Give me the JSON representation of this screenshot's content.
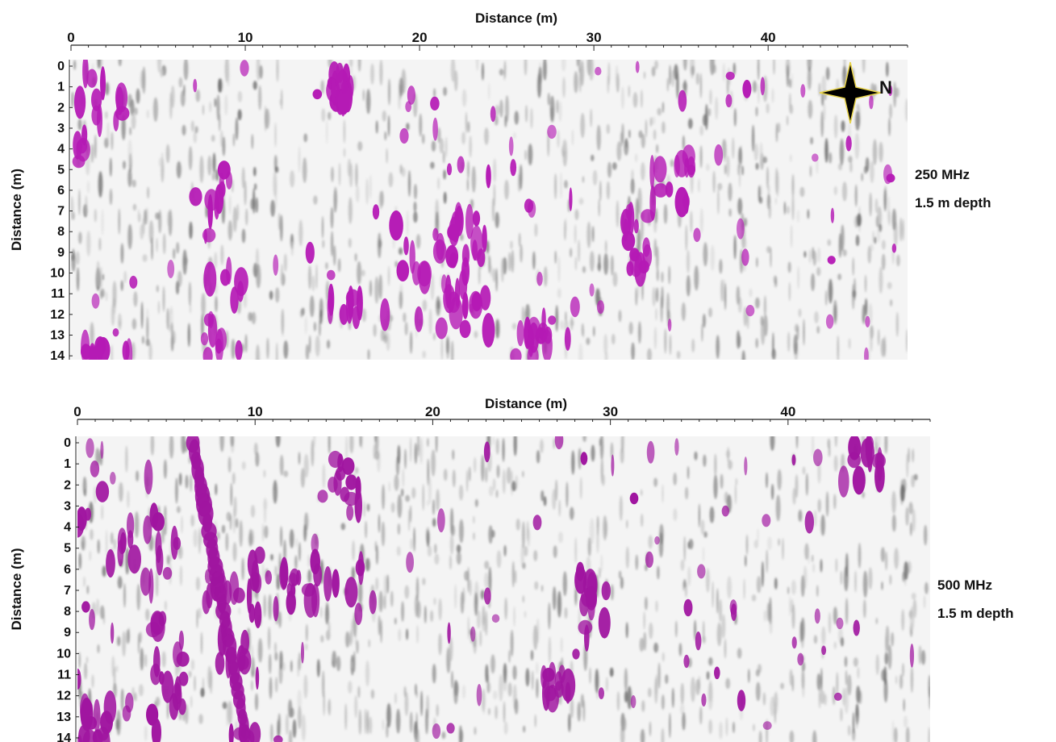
{
  "chart_data": [
    {
      "type": "heatmap",
      "xlabel": "Distance (m)",
      "ylabel": "Distance (m)",
      "x_ticks": [
        "0",
        "10",
        "20",
        "30",
        "40"
      ],
      "y_ticks": [
        "0",
        "1",
        "2",
        "3",
        "4",
        "5",
        "6",
        "7",
        "8",
        "9",
        "10",
        "11",
        "12",
        "13",
        "14"
      ],
      "xlim": [
        0,
        48
      ],
      "ylim": [
        0,
        14
      ],
      "annotation": [
        "250 MHz",
        "1.5 m depth"
      ],
      "north_label": "N",
      "colors": {
        "low": "#f4f4f4",
        "mid": "#8a8a8a",
        "high": "#b51ab5"
      },
      "anomalies": [
        {
          "x": 1.5,
          "y": 2.5,
          "rx": 1.5,
          "ry": 2.5
        },
        {
          "x": 8.5,
          "y": 7.0,
          "rx": 1.5,
          "ry": 2.0
        },
        {
          "x": 8.8,
          "y": 12.0,
          "rx": 1.0,
          "ry": 2.2
        },
        {
          "x": 15.5,
          "y": 1.5,
          "rx": 0.7,
          "ry": 1.2
        },
        {
          "x": 17.5,
          "y": 11.5,
          "rx": 3.0,
          "ry": 1.0
        },
        {
          "x": 20.0,
          "y": 8.5,
          "rx": 3.0,
          "ry": 1.8
        },
        {
          "x": 22.5,
          "y": 11.5,
          "rx": 1.5,
          "ry": 1.5
        },
        {
          "x": 22.8,
          "y": 8.0,
          "rx": 1.0,
          "ry": 1.5
        },
        {
          "x": 32.5,
          "y": 8.5,
          "rx": 0.7,
          "ry": 1.5
        },
        {
          "x": 34.5,
          "y": 5.5,
          "rx": 1.2,
          "ry": 1.2
        },
        {
          "x": 26.5,
          "y": 13.5,
          "rx": 1.0,
          "ry": 1.0
        },
        {
          "x": 2.0,
          "y": 14.0,
          "rx": 1.5,
          "ry": 0.6
        }
      ]
    },
    {
      "type": "heatmap",
      "xlabel": "Distance (m)",
      "ylabel": "Distance (m)",
      "x_ticks": [
        "0",
        "10",
        "20",
        "30",
        "40"
      ],
      "y_ticks": [
        "0",
        "1",
        "2",
        "3",
        "4",
        "5",
        "6",
        "7",
        "8",
        "9",
        "10",
        "11",
        "12",
        "13",
        "14"
      ],
      "xlim": [
        0,
        48
      ],
      "ylim": [
        0,
        14
      ],
      "annotation": [
        "500 MHz",
        "1.5 m depth"
      ],
      "colors": {
        "low": "#f4f4f4",
        "mid": "#8a8a8a",
        "high": "#a015a0"
      },
      "anomalies": [
        {
          "x": 2.0,
          "y": 3.0,
          "rx": 2.0,
          "ry": 3.0
        },
        {
          "x": 4.5,
          "y": 5.0,
          "rx": 1.5,
          "ry": 2.0
        },
        {
          "x": 8.5,
          "y": 6.8,
          "rx": 1.8,
          "ry": 1.5
        },
        {
          "x": 11.0,
          "y": 7.0,
          "rx": 1.5,
          "ry": 1.0
        },
        {
          "x": 14.8,
          "y": 2.0,
          "rx": 1.2,
          "ry": 1.5
        },
        {
          "x": 14.5,
          "y": 6.5,
          "rx": 1.5,
          "ry": 1.0
        },
        {
          "x": 9.0,
          "y": 11.5,
          "rx": 1.0,
          "ry": 2.5
        },
        {
          "x": 5.0,
          "y": 11.0,
          "rx": 1.0,
          "ry": 3.0
        },
        {
          "x": 29.0,
          "y": 8.0,
          "rx": 0.8,
          "ry": 1.5
        },
        {
          "x": 27.0,
          "y": 11.5,
          "rx": 0.8,
          "ry": 1.0
        },
        {
          "x": 44.0,
          "y": 1.0,
          "rx": 1.2,
          "ry": 1.0
        },
        {
          "x": 1.0,
          "y": 13.5,
          "rx": 1.0,
          "ry": 1.0
        }
      ],
      "diagonal_feature": {
        "from": [
          6.5,
          0
        ],
        "to": [
          9.5,
          14
        ]
      }
    }
  ]
}
